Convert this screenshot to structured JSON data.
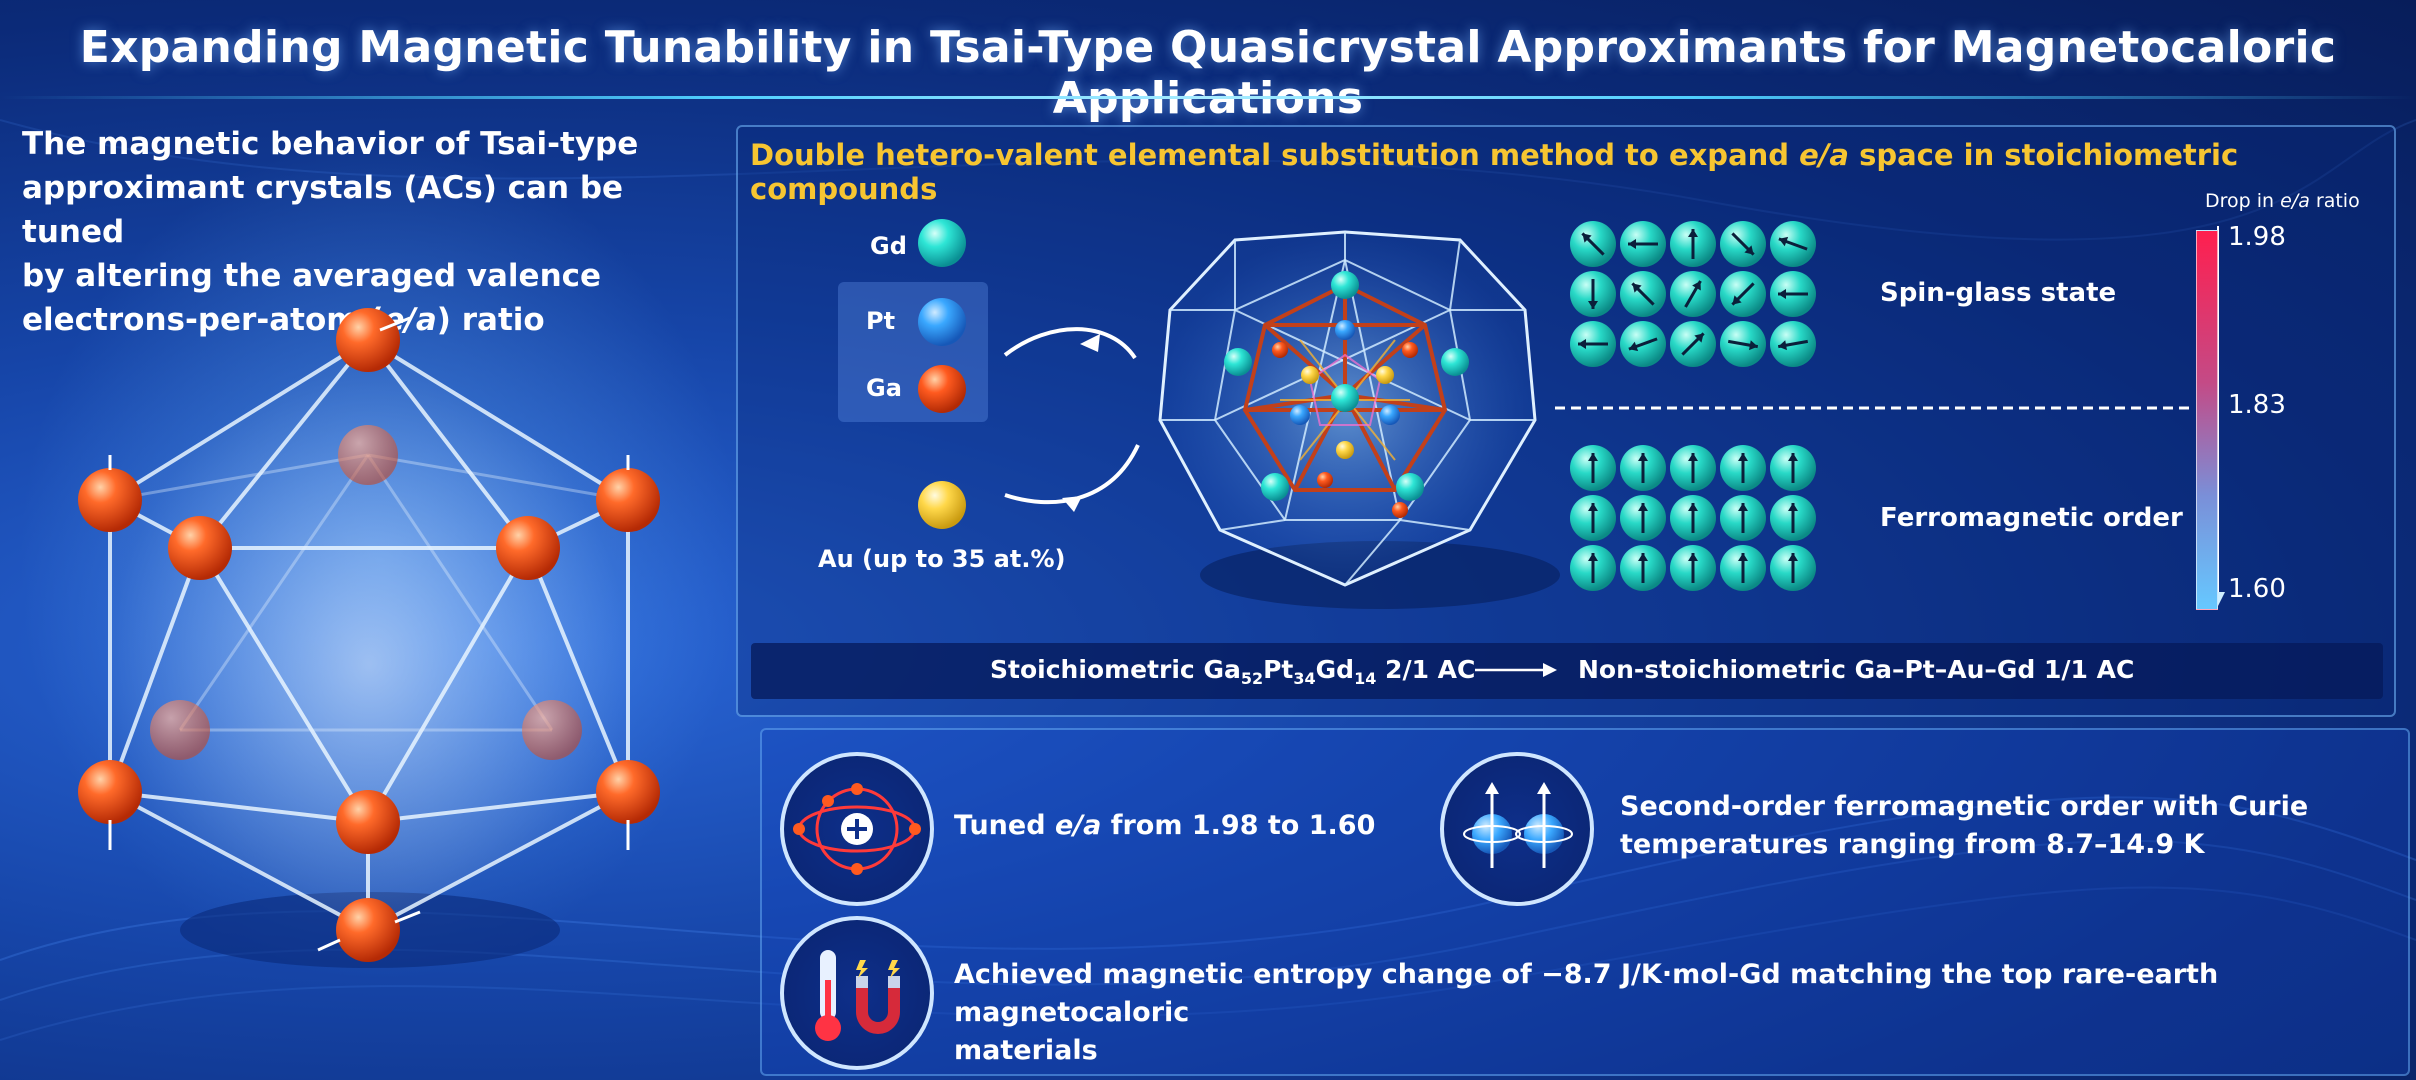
{
  "title": "Expanding Magnetic Tunability in Tsai-Type Quasicrystal Approximants for Magnetocaloric Applications",
  "intro": {
    "line1": "The magnetic behavior of Tsai-type",
    "line2": "approximant crystals (ACs) can be tuned",
    "line3": "by altering the averaged valence",
    "line4_pre": "electrons-per-atom (",
    "line4_em": "e/a",
    "line4_post": ") ratio"
  },
  "panel1": {
    "title_pre": "Double hetero-valent elemental substitution method to expand ",
    "title_em": "e/a",
    "title_post": " space in stoichiometric compounds",
    "legend": {
      "gd": "Gd",
      "pt": "Pt",
      "ga": "Ga",
      "au": "Au (up to 35 at.%)"
    },
    "states": {
      "spin_glass": "Spin-glass state",
      "ferromagnetic": "Ferromagnetic order"
    },
    "colorbar": {
      "title_pre": "Drop in ",
      "title_em": "e/a",
      "title_post": " ratio",
      "ticks": [
        "1.98",
        "1.83",
        "1.60"
      ]
    },
    "equation": {
      "left_pre": "Stoichiometric Ga",
      "sub1": "52",
      "mid1": "Pt",
      "sub2": "34",
      "mid2": "Gd",
      "sub3": "14",
      "left_post": " 2/1 AC",
      "right": "Non-stoichiometric Ga–Pt–Au–Gd 1/1 AC"
    }
  },
  "panel2": {
    "feat1_pre": "Tuned ",
    "feat1_em": "e/a",
    "feat1_post": " from 1.98 to 1.60",
    "feat2_line1": "Second-order ferromagnetic order with Curie",
    "feat2_line2": "temperatures ranging from 8.7–14.9 K",
    "feat3_line1": "Achieved magnetic entropy change of −8.7 J/K·mol-Gd matching the top rare-earth magnetocaloric",
    "feat3_line2": "materials"
  },
  "colors": {
    "accent_gold": "#f7c531",
    "gd": "#2ee6d6",
    "pt": "#3aa8ff",
    "ga": "#ff5a1f",
    "au": "#ffd84a"
  }
}
